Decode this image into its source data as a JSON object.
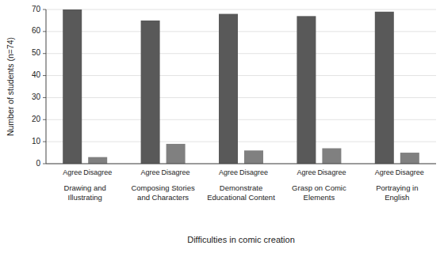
{
  "chart_data": {
    "type": "bar",
    "categories": [
      "Drawing and\nIllustrating",
      "Composing Stories\nand Characters",
      "Demonstrate\nEducational Content",
      "Grasp on Comic\nElements",
      "Portraying in\nEnglish"
    ],
    "series": [
      {
        "name": "Agree",
        "color": "#595959",
        "values": [
          70,
          65,
          68,
          67,
          69
        ]
      },
      {
        "name": "Disagree",
        "color": "#808080",
        "values": [
          3,
          9,
          6,
          7,
          5
        ]
      }
    ],
    "ylabel": "Number of students (n=74)",
    "xlabel": "Difficulties in comic creation",
    "ylim": [
      0,
      70
    ],
    "yticks": [
      0,
      10,
      20,
      30,
      40,
      50,
      60,
      70
    ],
    "grid": true
  }
}
